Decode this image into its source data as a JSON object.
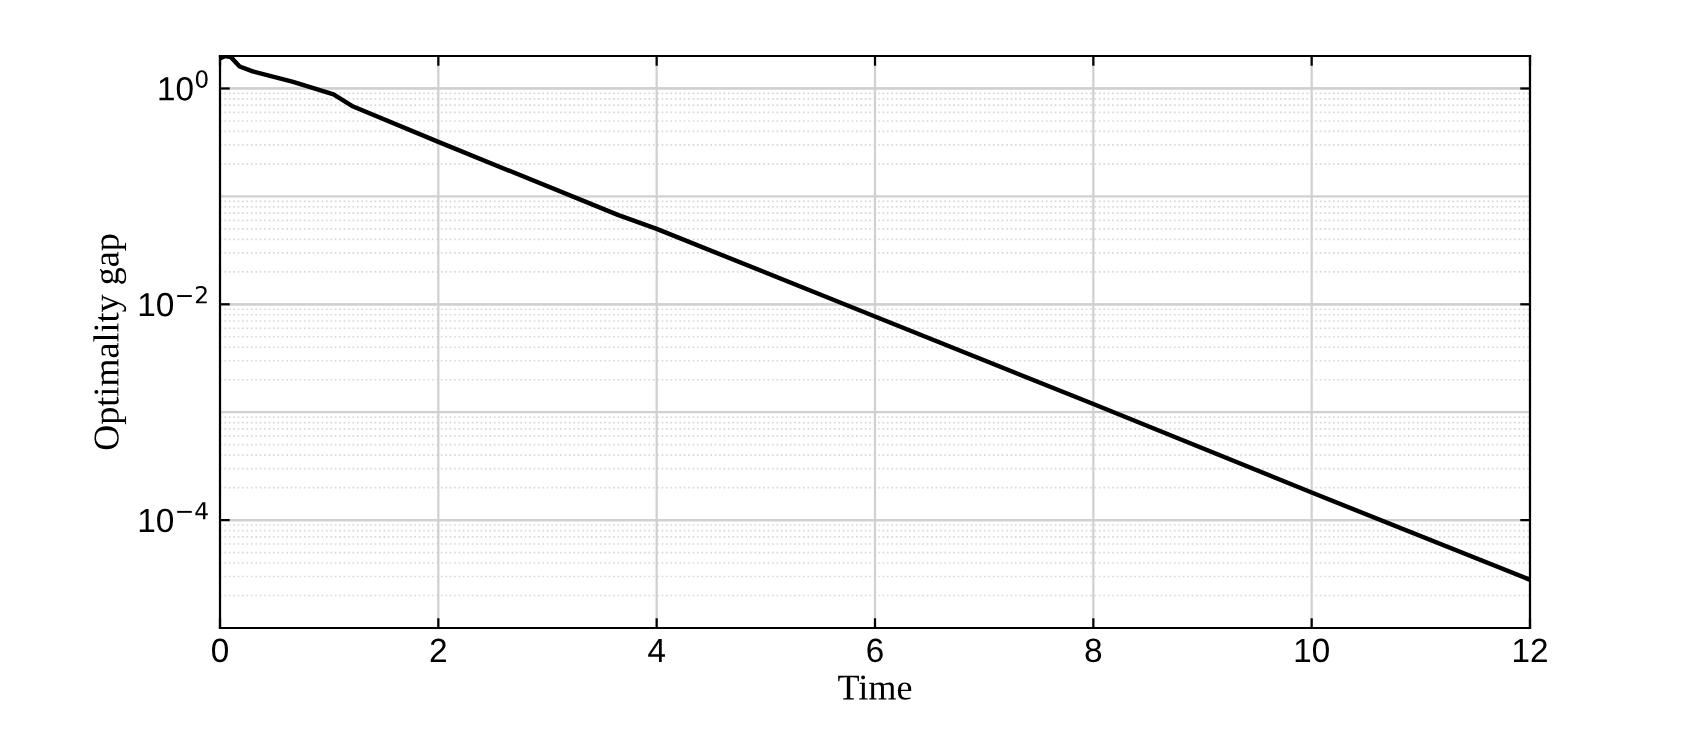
{
  "chart_data": {
    "type": "line",
    "xlabel": "Time",
    "ylabel": "Optimality gap",
    "x": [
      0,
      0.05,
      0.1,
      0.18,
      0.3,
      0.67,
      1.04,
      1.22,
      2,
      3.65,
      4,
      6,
      8,
      10,
      12
    ],
    "series": [
      {
        "color": "#000000",
        "values": [
          1.9,
          2.0,
          1.95,
          1.6,
          1.44,
          1.15,
          0.88,
          0.68,
          0.32,
          0.067,
          0.05,
          0.0077,
          0.00119,
          0.00018,
          2.8e-05
        ]
      }
    ],
    "log": "y",
    "xlim": [
      0,
      12
    ],
    "xticks": [
      0,
      2,
      4,
      6,
      8,
      10,
      12
    ],
    "ylim": [
      1e-05,
      2
    ],
    "yticks": [
      {
        "value": 0.0001,
        "label": "10$^{−4}$"
      },
      {
        "value": 0.01,
        "label": "10$^{−2}$"
      },
      {
        "value": 1,
        "label": "10$^{0}$"
      }
    ],
    "grid": true,
    "marker": "none",
    "line_style": "solid",
    "legend": false
  }
}
